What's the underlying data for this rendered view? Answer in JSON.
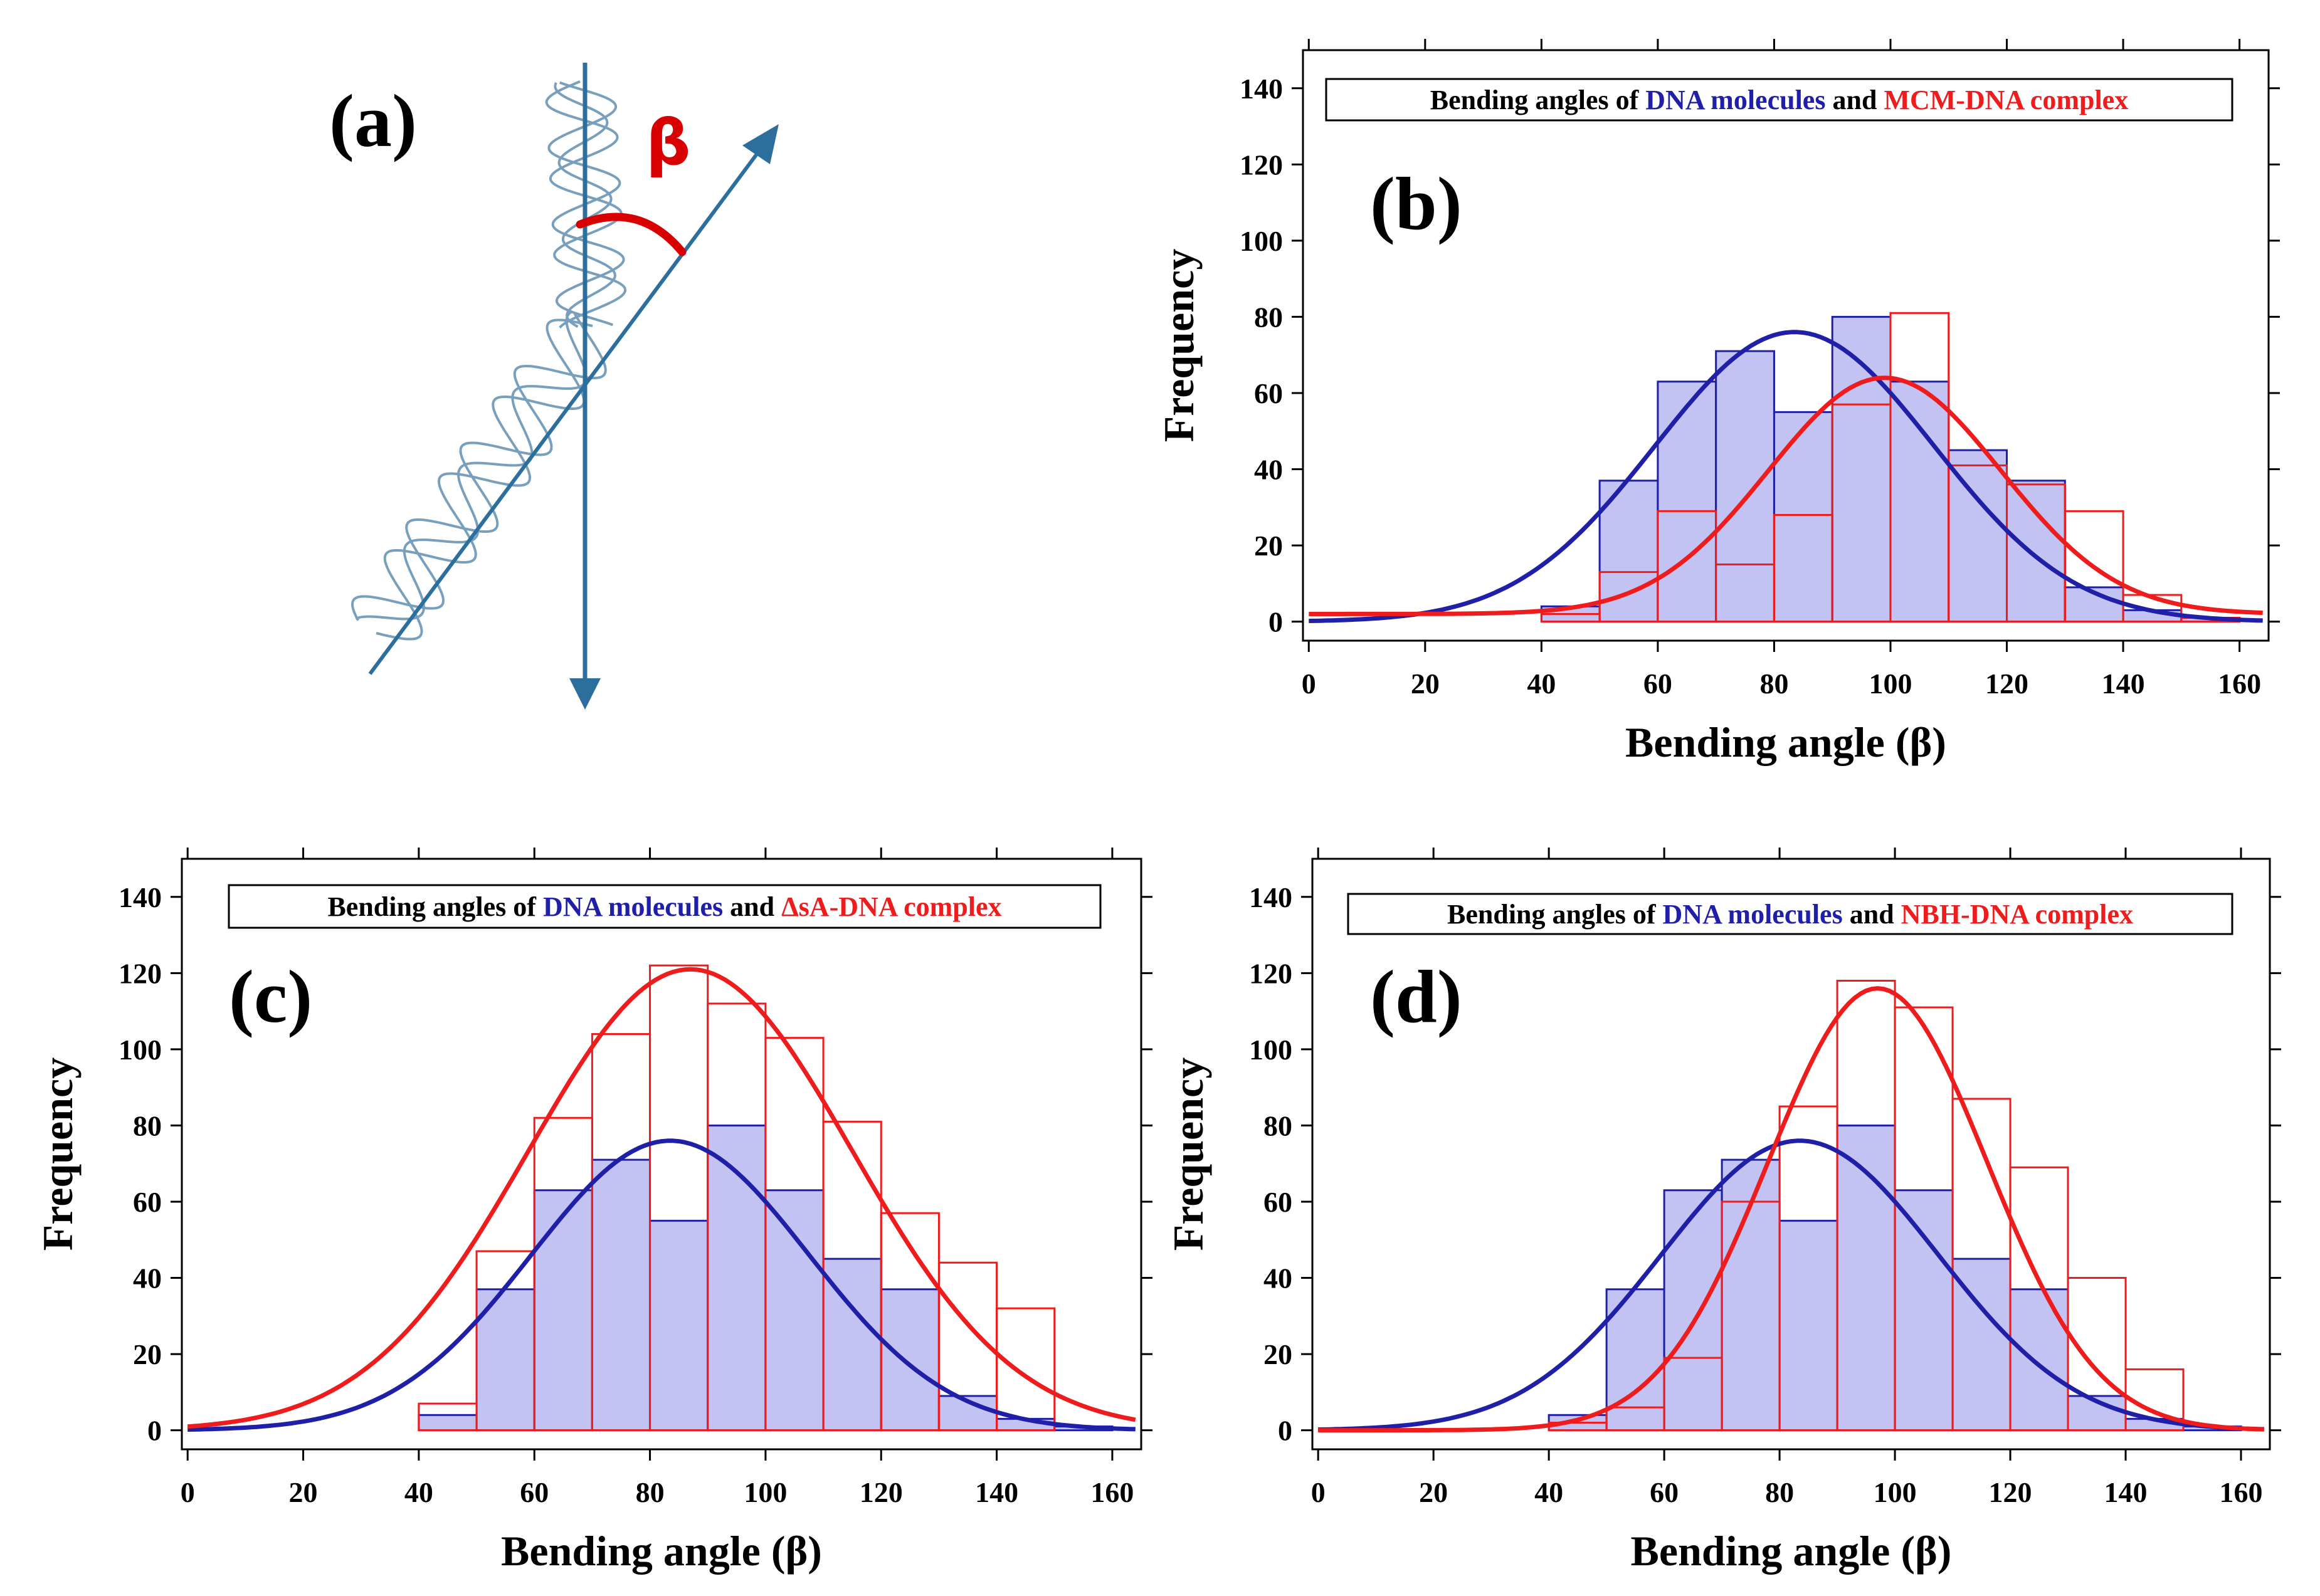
{
  "colors": {
    "dna": "#1f1fa8",
    "complex": "#ee1c1c",
    "dna_fill": "#c3c3f3",
    "schematic": "#2d6f9c",
    "beta_arc": "#d80000"
  },
  "schematic": {
    "panel_label": "(a)",
    "beta_label": "β"
  },
  "chart_data": [
    {
      "type": "bar",
      "panel_label": "(b)",
      "title_parts": [
        "Bending angles of ",
        "DNA molecules",
        " and ",
        "MCM-DNA complex"
      ],
      "xlabel": "Bending angle (β)",
      "ylabel": "Frequency",
      "xlim": [
        -1,
        165
      ],
      "ylim": [
        -5,
        150
      ],
      "xticks": [
        0,
        20,
        40,
        60,
        80,
        100,
        120,
        140,
        160
      ],
      "yticks": [
        0,
        20,
        40,
        60,
        80,
        100,
        120,
        140
      ],
      "bin_width": 10,
      "series": [
        {
          "name": "DNA molecules",
          "bins": [
            40,
            50,
            60,
            70,
            80,
            90,
            100,
            110,
            120,
            130,
            140,
            150
          ],
          "values": [
            4,
            37,
            63,
            71,
            55,
            80,
            63,
            45,
            37,
            9,
            3,
            1
          ],
          "fit": {
            "center": 83.5,
            "sigma": 24,
            "amplitude": 76
          }
        },
        {
          "name": "MCM-DNA complex",
          "bins": [
            40,
            50,
            60,
            70,
            80,
            90,
            100,
            110,
            120,
            130,
            140,
            150
          ],
          "values": [
            2,
            13,
            29,
            15,
            28,
            57,
            81,
            41,
            36,
            29,
            7,
            1
          ],
          "fit": {
            "center": 99,
            "sigma": 20,
            "amplitude": 62,
            "offset": 2
          }
        }
      ]
    },
    {
      "type": "bar",
      "panel_label": "(c)",
      "title_parts": [
        "Bending angles of ",
        "DNA molecules",
        " and ",
        "ΔsA-DNA complex"
      ],
      "xlabel": "Bending angle (β)",
      "ylabel": "Frequency",
      "xlim": [
        -1,
        165
      ],
      "ylim": [
        -5,
        150
      ],
      "xticks": [
        0,
        20,
        40,
        60,
        80,
        100,
        120,
        140,
        160
      ],
      "yticks": [
        0,
        20,
        40,
        60,
        80,
        100,
        120,
        140
      ],
      "bin_width": 10,
      "series": [
        {
          "name": "DNA molecules",
          "bins": [
            40,
            50,
            60,
            70,
            80,
            90,
            100,
            110,
            120,
            130,
            140,
            150
          ],
          "values": [
            4,
            37,
            63,
            71,
            55,
            80,
            63,
            45,
            37,
            9,
            3,
            1
          ],
          "fit": {
            "center": 83.5,
            "sigma": 24,
            "amplitude": 76
          }
        },
        {
          "name": "ΔsA-DNA complex",
          "bins": [
            40,
            50,
            60,
            70,
            80,
            90,
            100,
            110,
            120,
            130,
            140
          ],
          "values": [
            7,
            47,
            82,
            104,
            122,
            112,
            103,
            81,
            57,
            44,
            32
          ],
          "fit": {
            "center": 87,
            "sigma": 28,
            "amplitude": 121
          }
        }
      ]
    },
    {
      "type": "bar",
      "panel_label": "(d)",
      "title_parts": [
        "Bending angles of ",
        "DNA molecules",
        " and ",
        "NBH-DNA complex"
      ],
      "xlabel": "Bending angle (β)",
      "ylabel": "Frequency",
      "xlim": [
        -1,
        165
      ],
      "ylim": [
        -5,
        150
      ],
      "xticks": [
        0,
        20,
        40,
        60,
        80,
        100,
        120,
        140,
        160
      ],
      "yticks": [
        0,
        20,
        40,
        60,
        80,
        100,
        120,
        140
      ],
      "bin_width": 10,
      "series": [
        {
          "name": "DNA molecules",
          "bins": [
            40,
            50,
            60,
            70,
            80,
            90,
            100,
            110,
            120,
            130,
            140,
            150
          ],
          "values": [
            4,
            37,
            63,
            71,
            55,
            80,
            63,
            45,
            37,
            9,
            3,
            1
          ],
          "fit": {
            "center": 83.5,
            "sigma": 24,
            "amplitude": 76
          }
        },
        {
          "name": "NBH-DNA complex",
          "bins": [
            40,
            50,
            60,
            70,
            80,
            90,
            100,
            110,
            120,
            130,
            140
          ],
          "values": [
            2,
            6,
            19,
            60,
            85,
            118,
            111,
            87,
            69,
            40,
            16
          ],
          "fit": {
            "center": 97,
            "sigma": 19,
            "amplitude": 116
          }
        }
      ]
    }
  ]
}
